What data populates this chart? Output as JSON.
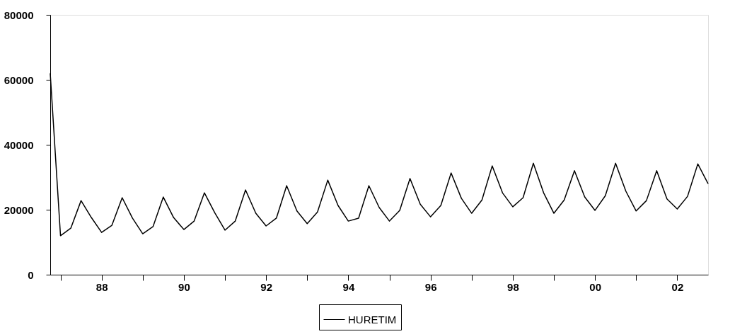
{
  "chart_data": {
    "type": "line",
    "x": [
      1986.75,
      1987.0,
      1987.25,
      1987.5,
      1987.75,
      1988.0,
      1988.25,
      1988.5,
      1988.75,
      1989.0,
      1989.25,
      1989.5,
      1989.75,
      1990.0,
      1990.25,
      1990.5,
      1990.75,
      1991.0,
      1991.25,
      1991.5,
      1991.75,
      1992.0,
      1992.25,
      1992.5,
      1992.75,
      1993.0,
      1993.25,
      1993.5,
      1993.75,
      1994.0,
      1994.25,
      1994.5,
      1994.75,
      1995.0,
      1995.25,
      1995.5,
      1995.75,
      1996.0,
      1996.25,
      1996.5,
      1996.75,
      1997.0,
      1997.25,
      1997.5,
      1997.75,
      1998.0,
      1998.25,
      1998.5,
      1998.75,
      1999.0,
      1999.25,
      1999.5,
      1999.75,
      2000.0,
      2000.25,
      2000.5,
      2000.75,
      2001.0,
      2001.25,
      2001.5,
      2001.75,
      2002.0,
      2002.25,
      2002.5,
      2002.75
    ],
    "series": [
      {
        "name": "HURETIM",
        "color": "#000000",
        "values": [
          62000,
          12000,
          14300,
          22800,
          17600,
          13000,
          15200,
          23700,
          17400,
          12600,
          14800,
          23900,
          17600,
          13900,
          16500,
          25200,
          19100,
          13700,
          16500,
          26100,
          18900,
          15000,
          17400,
          27400,
          19600,
          15700,
          19300,
          29100,
          21300,
          16500,
          17400,
          27400,
          20700,
          16500,
          19800,
          29600,
          21700,
          17800,
          21300,
          31300,
          23500,
          18900,
          23000,
          33500,
          25200,
          20900,
          23700,
          34300,
          25200,
          18900,
          23000,
          32000,
          23900,
          19800,
          24300,
          34300,
          25700,
          19600,
          22800,
          32000,
          23300,
          20200,
          24100,
          34100,
          28000
        ]
      }
    ],
    "xlim": [
      1986.75,
      2002.75
    ],
    "xticks": [
      {
        "value": 1987,
        "label": null
      },
      {
        "value": 1988,
        "label": "88"
      },
      {
        "value": 1989,
        "label": null
      },
      {
        "value": 1990,
        "label": "90"
      },
      {
        "value": 1991,
        "label": null
      },
      {
        "value": 1992,
        "label": "92"
      },
      {
        "value": 1993,
        "label": null
      },
      {
        "value": 1994,
        "label": "94"
      },
      {
        "value": 1995,
        "label": null
      },
      {
        "value": 1996,
        "label": "96"
      },
      {
        "value": 1997,
        "label": null
      },
      {
        "value": 1998,
        "label": "98"
      },
      {
        "value": 1999,
        "label": null
      },
      {
        "value": 2000,
        "label": "00"
      },
      {
        "value": 2001,
        "label": null
      },
      {
        "value": 2002,
        "label": "02"
      }
    ],
    "ylim": [
      0,
      80000
    ],
    "yticks": [
      0,
      20000,
      40000,
      60000,
      80000
    ],
    "grid": false,
    "legend": "bottom",
    "marker": "none",
    "line_style": "solid"
  }
}
